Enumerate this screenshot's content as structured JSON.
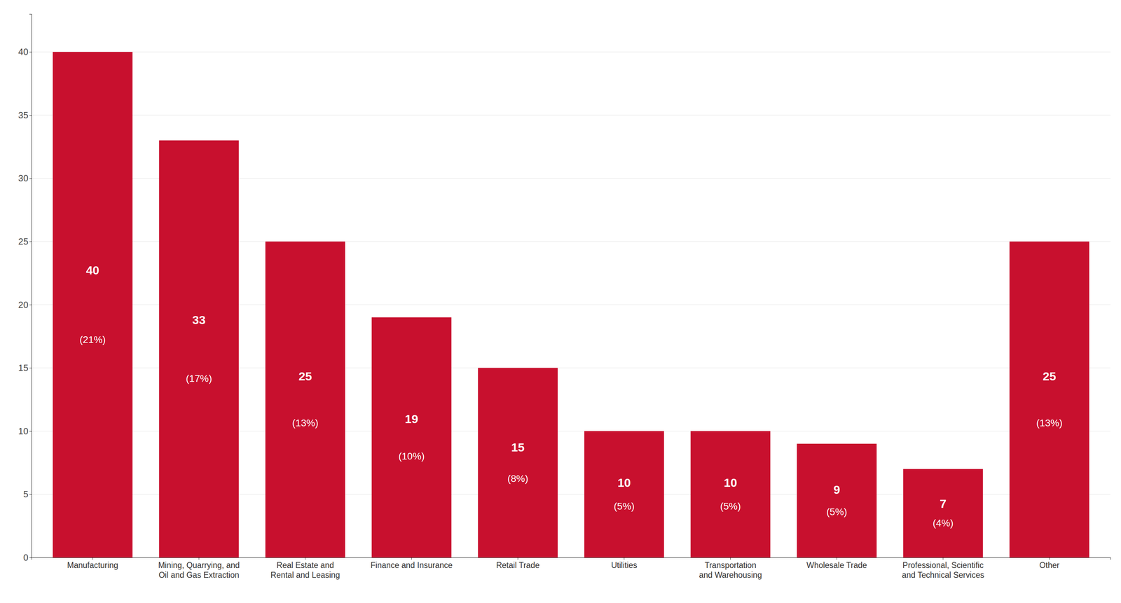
{
  "chart_data": {
    "type": "bar",
    "categories": [
      "Manufacturing",
      "Mining, Quarrying, and\nOil and Gas Extraction",
      "Real Estate and\nRental and Leasing",
      "Finance and Insurance",
      "Retail Trade",
      "Utilities",
      "Transportation\nand Warehousing",
      "Wholesale Trade",
      "Professional, Scientific\nand Technical Services",
      "Other"
    ],
    "values": [
      40,
      33,
      25,
      19,
      15,
      10,
      10,
      9,
      7,
      25
    ],
    "percentage_labels": [
      "(21%)",
      "(17%)",
      "(13%)",
      "(10%)",
      "(8%)",
      "(5%)",
      "(5%)",
      "(5%)",
      "(4%)",
      "(13%)"
    ],
    "color": "#C8102E",
    "ylim": [
      0,
      43
    ],
    "yticks": [
      0,
      5,
      10,
      15,
      20,
      25,
      30,
      35,
      40
    ],
    "grid": true,
    "data_labels": true
  }
}
